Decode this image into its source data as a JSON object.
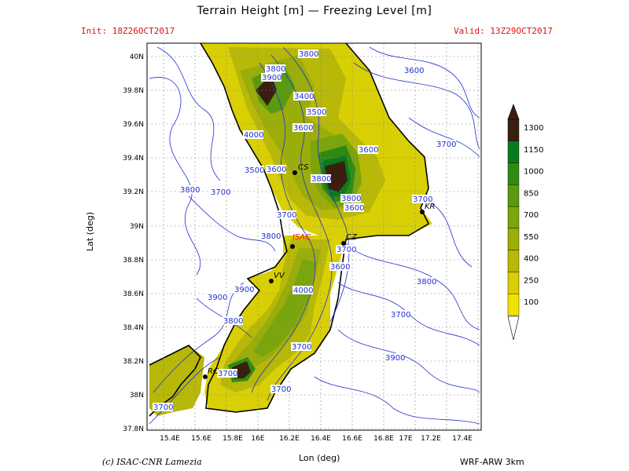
{
  "header": {
    "title": "Terrain Height [m] — Freezing Level [m]",
    "init": "Init: 18Z26OCT2017",
    "valid": "Valid: 13Z29OCT2017"
  },
  "axes": {
    "ylabel": "Lat (deg)",
    "xlabel": "Lon (deg)",
    "lat_ticks": [
      "40N",
      "39.8N",
      "39.6N",
      "39.4N",
      "39.2N",
      "39N",
      "38.8N",
      "38.6N",
      "38.4N",
      "38.2N",
      "38N",
      "37.8N"
    ],
    "lon_ticks": [
      "15.4E",
      "15.6E",
      "15.8E",
      "16E",
      "16.2E",
      "16.4E",
      "16.6E",
      "16.8E",
      "17E",
      "17.2E",
      "17.4E"
    ]
  },
  "colorbar": {
    "levels": [
      "1300",
      "1150",
      "1000",
      "850",
      "700",
      "550",
      "400",
      "250",
      "100"
    ],
    "colors": [
      "#3a1f10",
      "#0a7a1e",
      "#2f8a14",
      "#5a9a10",
      "#7aa50c",
      "#9aad0a",
      "#b7b808",
      "#d8cf05",
      "#f2e200"
    ]
  },
  "cities": [
    {
      "code": "CS"
    },
    {
      "code": "KR"
    },
    {
      "code": "ISAC"
    },
    {
      "code": "CZ"
    },
    {
      "code": "VV"
    },
    {
      "code": "RC"
    }
  ],
  "contour_labels": [
    "3800",
    "3900",
    "3800",
    "3600",
    "3400",
    "3500",
    "3600",
    "4000",
    "3600",
    "3700",
    "3800",
    "3700",
    "3500",
    "3600",
    "3800",
    "3800",
    "3600",
    "3700",
    "3700",
    "3800",
    "3700",
    "4000",
    "3600",
    "3900",
    "3900",
    "3800",
    "3800",
    "3700",
    "3700",
    "3900",
    "3700",
    "3700",
    "3700"
  ],
  "footer": {
    "left": "(c) ISAC-CNR Lamezia",
    "right": "WRF-ARW 3km"
  },
  "colors": {
    "accent_red": "#e01010",
    "contour_blue": "#2030d0",
    "coast": "#000000"
  }
}
